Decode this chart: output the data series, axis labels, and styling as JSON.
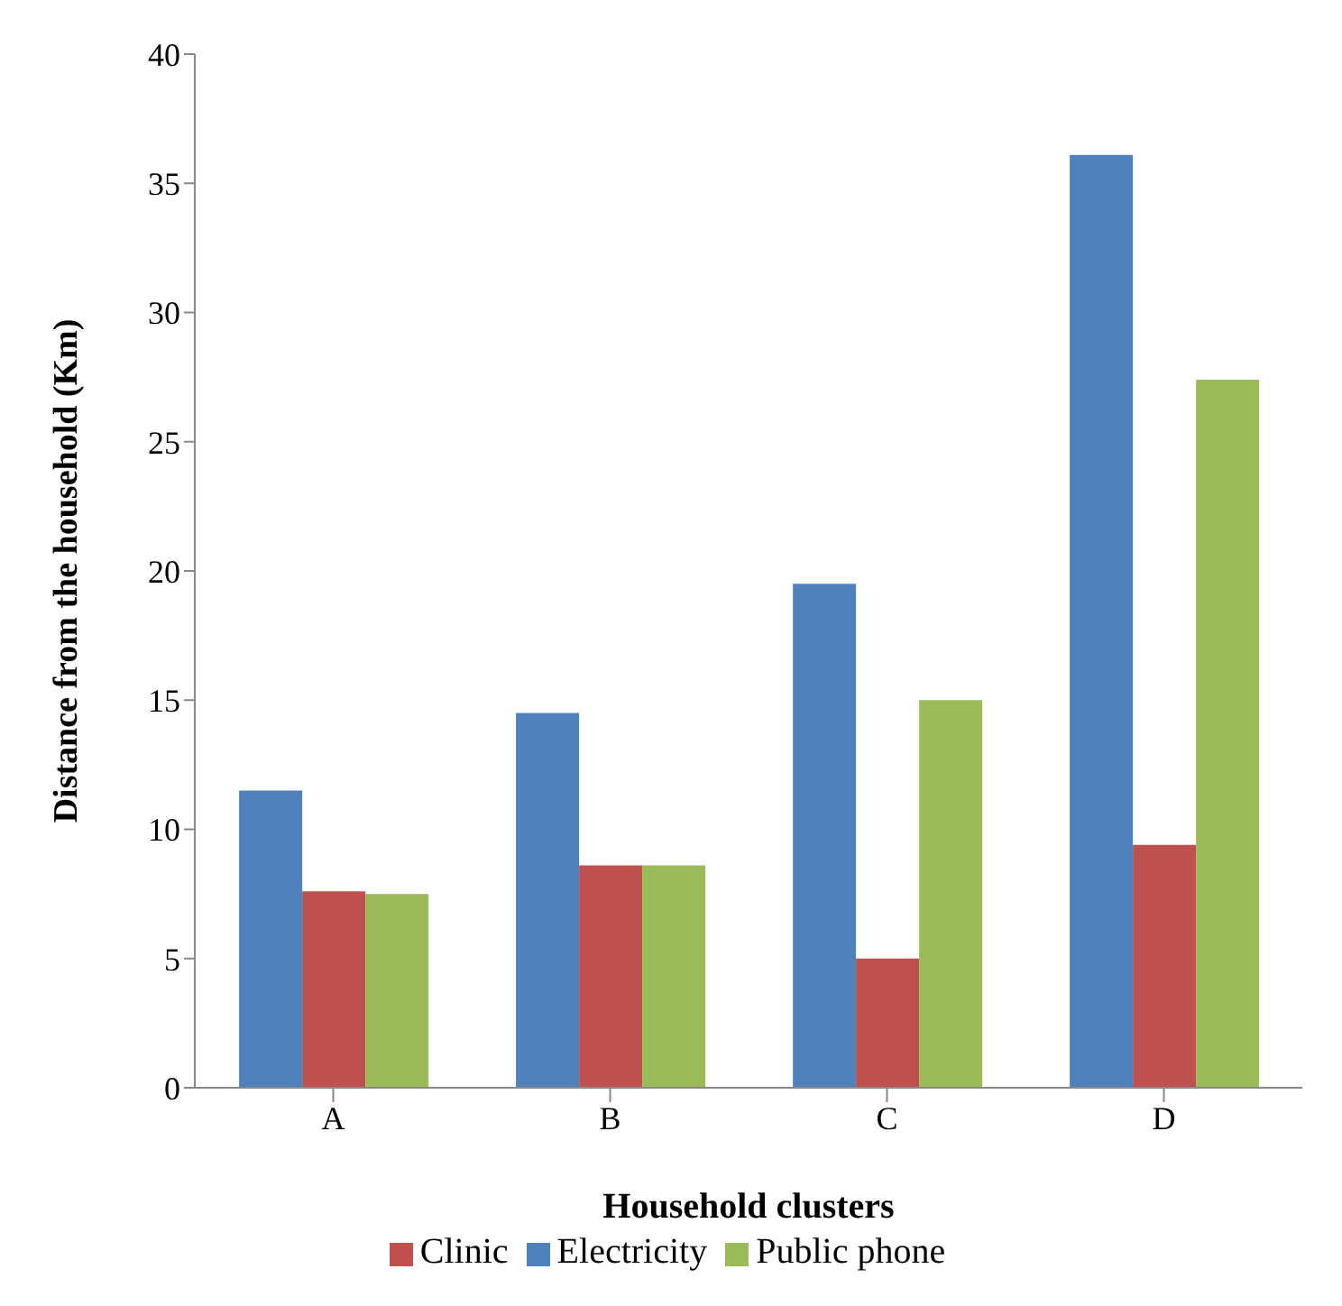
{
  "chart_data": {
    "type": "bar",
    "xlabel": "Household clusters",
    "ylabel": "Distance from the household (Km)",
    "categories": [
      "A",
      "B",
      "C",
      "D"
    ],
    "series": [
      {
        "name": "Electricity",
        "color": "#4f81bd",
        "values": [
          11.5,
          14.5,
          19.5,
          36.1
        ]
      },
      {
        "name": "Clinic",
        "color": "#c0504d",
        "values": [
          7.6,
          8.6,
          5,
          9.4
        ]
      },
      {
        "name": "Public phone",
        "color": "#9bbb59",
        "values": [
          7.5,
          8.6,
          15,
          27.4
        ]
      }
    ],
    "ylim": [
      0,
      40
    ],
    "yticks": [
      0,
      5,
      10,
      15,
      20,
      25,
      30,
      35,
      40
    ],
    "grid": false,
    "legend": "bottom"
  }
}
